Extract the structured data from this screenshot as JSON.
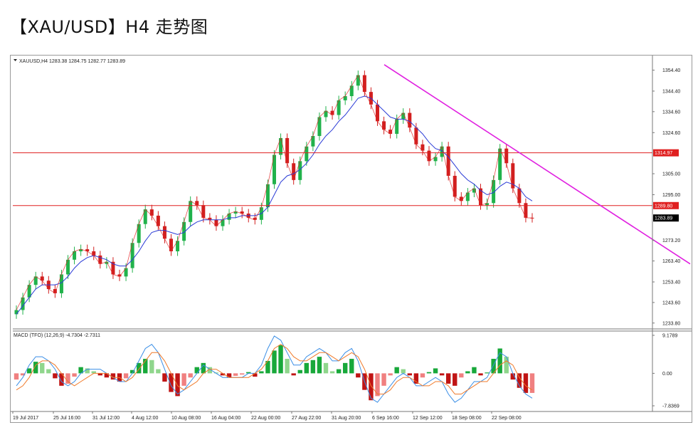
{
  "page": {
    "title": "【XAU/USD】H4 走势图"
  },
  "chart_data": [
    {
      "type": "candlestick",
      "title": "",
      "header_text": "XAUUSD,H4  1283.38 1284.75 1282.77 1283.89",
      "symbol": "XAUUSD",
      "timeframe": "H4",
      "ohlc_readout": {
        "open": 1283.38,
        "high": 1284.75,
        "low": 1282.77,
        "close": 1283.89
      },
      "y_ticks": [
        "1354.40",
        "1344.40",
        "1334.60",
        "1324.60",
        "1305.00",
        "1295.00",
        "1273.20",
        "1263.40",
        "1253.40",
        "1243.60",
        "1233.80"
      ],
      "ylim": [
        1231,
        1360
      ],
      "x_ticks": [
        "19 Jul 2017",
        "25 Jul 16:00",
        "31 Jul 12:00",
        "4 Aug 12:00",
        "10 Aug 08:00",
        "16 Aug 04:00",
        "22 Aug 00:00",
        "27 Aug 22:00",
        "31 Aug 20:00",
        "6 Sep 16:00",
        "12 Sep 12:00",
        "18 Sep 08:00",
        "22 Sep 08:00"
      ],
      "horizontal_lines": [
        {
          "value": 1314.97,
          "label": "1314.97",
          "color": "#e02020"
        },
        {
          "value": 1289.8,
          "label": "1289.80",
          "color": "#e02020"
        }
      ],
      "current_price": {
        "value": 1283.89,
        "label": "1283.89"
      },
      "trendline": {
        "start": {
          "x": "6 Sep 16:00",
          "y": 1357
        },
        "end": {
          "x": "after 22 Sep",
          "y": 1262
        },
        "color": "#e020e0"
      },
      "close_series_approx": [
        1240,
        1246,
        1252,
        1256,
        1254,
        1250,
        1248,
        1257,
        1264,
        1268,
        1269,
        1268,
        1266,
        1262,
        1263,
        1257,
        1256,
        1260,
        1272,
        1281,
        1288,
        1285,
        1280,
        1274,
        1268,
        1273,
        1282,
        1292,
        1290,
        1284,
        1283,
        1280,
        1283,
        1286,
        1287,
        1286,
        1284,
        1283,
        1289,
        1300,
        1314,
        1322,
        1310,
        1302,
        1311,
        1318,
        1323,
        1332,
        1335,
        1333,
        1340,
        1342,
        1347,
        1352,
        1344,
        1338,
        1330,
        1326,
        1324,
        1331,
        1334,
        1327,
        1319,
        1316,
        1311,
        1313,
        1318,
        1304,
        1294,
        1292,
        1296,
        1298,
        1290,
        1291,
        1302,
        1317,
        1310,
        1298,
        1291,
        1284,
        1283.89
      ],
      "ma_series_approx": [
        1238,
        1242,
        1246,
        1250,
        1252,
        1252,
        1252,
        1253,
        1256,
        1260,
        1263,
        1265,
        1266,
        1265,
        1264,
        1262,
        1261,
        1261,
        1264,
        1268,
        1273,
        1277,
        1278,
        1278,
        1277,
        1276,
        1277,
        1280,
        1282,
        1283,
        1283,
        1283,
        1283,
        1284,
        1284,
        1285,
        1285,
        1285,
        1286,
        1289,
        1295,
        1301,
        1304,
        1305,
        1307,
        1310,
        1314,
        1319,
        1323,
        1326,
        1330,
        1333,
        1337,
        1341,
        1342,
        1341,
        1338,
        1335,
        1332,
        1331,
        1331,
        1330,
        1327,
        1324,
        1320,
        1317,
        1316,
        1313,
        1309,
        1305,
        1302,
        1300,
        1297,
        1295,
        1296,
        1299,
        1301,
        1300,
        1298,
        1294,
        1292
      ]
    },
    {
      "type": "bar",
      "title": "",
      "header_text": "MACD (TFO) (12,26,9) -4.7304 -2.7311",
      "indicator": "MACD (TFO)",
      "params": "(12,26,9)",
      "values_readout": [
        -4.7304,
        -2.7311
      ],
      "y_ticks": [
        "9.1789",
        "0.00",
        "-7.8369"
      ],
      "ylim": [
        -7.8369,
        9.1789
      ],
      "histogram_approx": [
        -1.5,
        -0.5,
        1.2,
        2.8,
        2.5,
        1.0,
        -1.2,
        -3.0,
        -2.5,
        -0.8,
        1.5,
        1.2,
        0.5,
        -0.5,
        -1.0,
        -1.5,
        -2.0,
        -1.2,
        0.8,
        2.5,
        3.5,
        3.2,
        1.0,
        -2.0,
        -4.5,
        -5.5,
        -3.0,
        -1.0,
        1.5,
        2.5,
        1.5,
        0.2,
        -0.5,
        -1.0,
        -0.6,
        -0.3,
        0.3,
        -0.8,
        0.5,
        3.0,
        5.5,
        6.8,
        3.5,
        -0.5,
        0.8,
        2.5,
        3.2,
        4.0,
        2.5,
        0.5,
        1.0,
        2.5,
        3.5,
        -1.0,
        -4.0,
        -6.5,
        -5.5,
        -3.0,
        -0.5,
        1.5,
        1.0,
        -0.5,
        -2.5,
        -1.0,
        0.3,
        1.2,
        -0.5,
        -2.5,
        -3.0,
        -1.0,
        0.5,
        1.5,
        -0.5,
        0.2,
        3.5,
        6.0,
        4.0,
        -1.5,
        -3.5,
        -4.7304,
        -4.7304
      ],
      "macd_line_approx": [
        -3,
        -1,
        2,
        4,
        4,
        3,
        1,
        -2,
        -3,
        -2,
        0,
        1,
        1,
        1,
        0,
        -1,
        -2,
        -2,
        0,
        3,
        6,
        7,
        5,
        1,
        -3,
        -5,
        -4,
        -2,
        0,
        2,
        1,
        0,
        -1,
        -1,
        -1,
        -1,
        0,
        0,
        2,
        6,
        9,
        8,
        5,
        2,
        2,
        4,
        5,
        6,
        5,
        3,
        3,
        5,
        6,
        3,
        -2,
        -6,
        -7,
        -5,
        -3,
        -1,
        0,
        -1,
        -3,
        -3,
        -2,
        -1,
        -2,
        -5,
        -7,
        -6,
        -4,
        -2,
        -2,
        -1,
        2,
        5,
        4,
        0,
        -3,
        -5,
        -6
      ],
      "signal_line_approx": [
        -4,
        -3,
        -1,
        2,
        3,
        3,
        2,
        0,
        -2,
        -3,
        -2,
        -1,
        0,
        0,
        0,
        -1,
        -1,
        -2,
        -1,
        1,
        3,
        5,
        5,
        3,
        0,
        -3,
        -4,
        -3,
        -2,
        0,
        1,
        1,
        0,
        -1,
        -1,
        -1,
        -1,
        0,
        1,
        3,
        6,
        7,
        6,
        4,
        3,
        3,
        4,
        5,
        5,
        4,
        3,
        4,
        5,
        4,
        1,
        -3,
        -5,
        -5,
        -4,
        -2,
        -1,
        -1,
        -2,
        -3,
        -3,
        -2,
        -2,
        -3,
        -5,
        -5,
        -4,
        -3,
        -2,
        -2,
        0,
        2,
        3,
        2,
        -1,
        -3,
        -4
      ]
    }
  ]
}
